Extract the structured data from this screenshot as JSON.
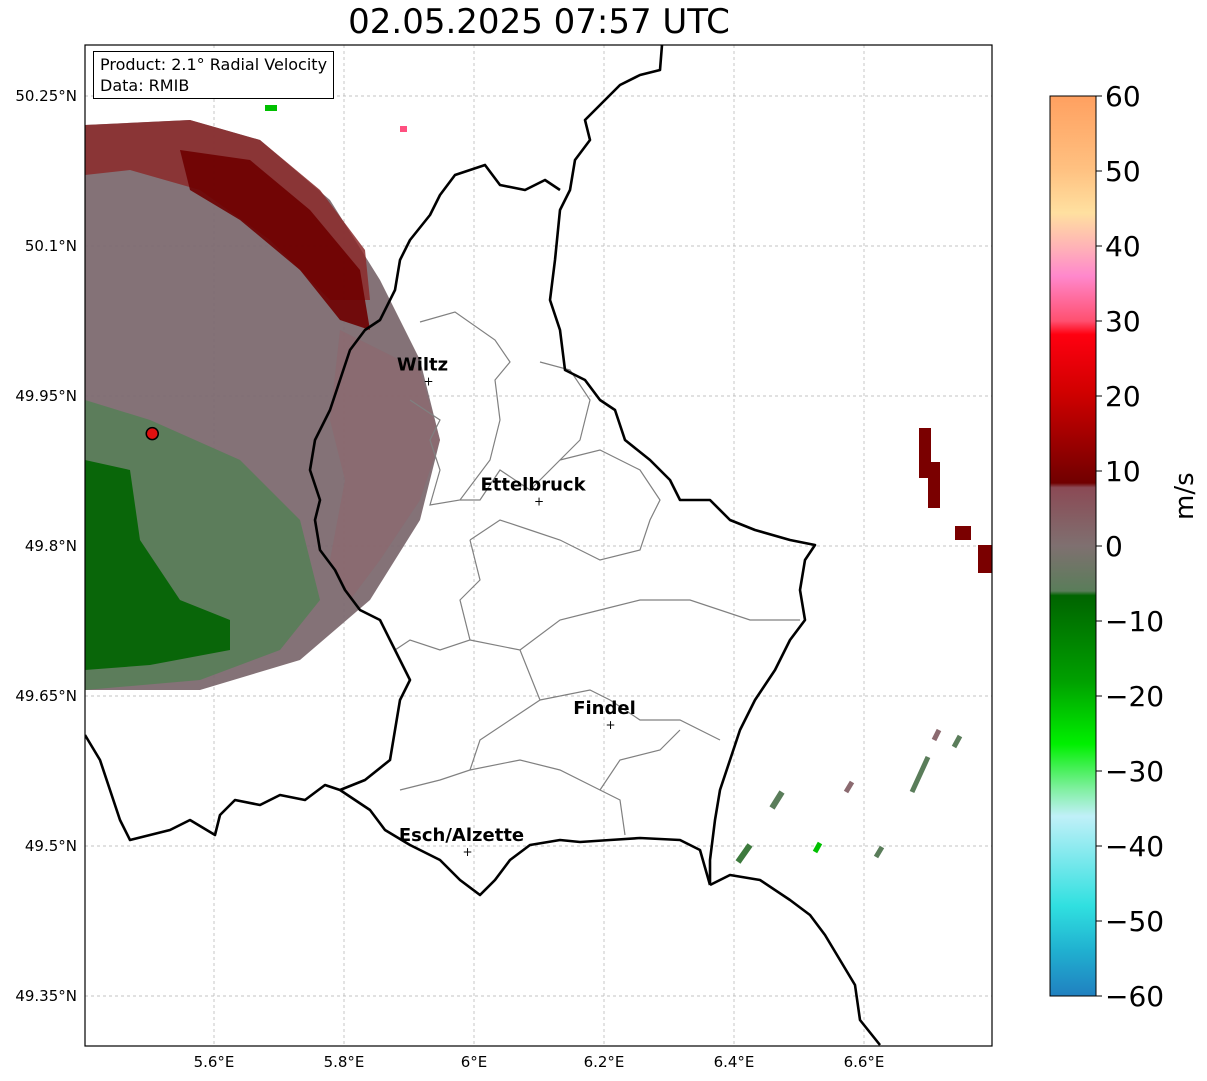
{
  "title": "02.05.2025 07:57 UTC",
  "info": {
    "product": "Product: 2.1° Radial Velocity",
    "data": "Data: RMIB"
  },
  "lat_ticks": [
    "50.25°N",
    "50.1°N",
    "49.95°N",
    "49.8°N",
    "49.65°N",
    "49.5°N",
    "49.35°N"
  ],
  "lon_ticks": [
    "5.6°E",
    "5.8°E",
    "6°E",
    "6.2°E",
    "6.4°E",
    "6.6°E"
  ],
  "places": [
    {
      "name": "Wiltz",
      "lon": 5.93,
      "lat": 49.967
    },
    {
      "name": "Ettelbruck",
      "lon": 6.1,
      "lat": 49.847
    },
    {
      "name": "Findel",
      "lon": 6.21,
      "lat": 49.624
    },
    {
      "name": "Esch/Alzette",
      "lon": 5.99,
      "lat": 49.497
    }
  ],
  "radar_site": {
    "lon": 5.505,
    "lat": 49.914
  },
  "colorbar": {
    "label": "m/s",
    "ticks": [
      "60",
      "50",
      "40",
      "30",
      "20",
      "10",
      "0",
      "−10",
      "−20",
      "−30",
      "−40",
      "−50",
      "−60"
    ],
    "range": [
      -60,
      60
    ]
  },
  "colors": {
    "outward_dark": "#7a0000",
    "outward_light": "#8b5a63",
    "near_zero": "#7f6b72",
    "inward": "#5a7d5a",
    "inward_dark": "#006400",
    "border": "#000000",
    "canton": "#808080"
  }
}
